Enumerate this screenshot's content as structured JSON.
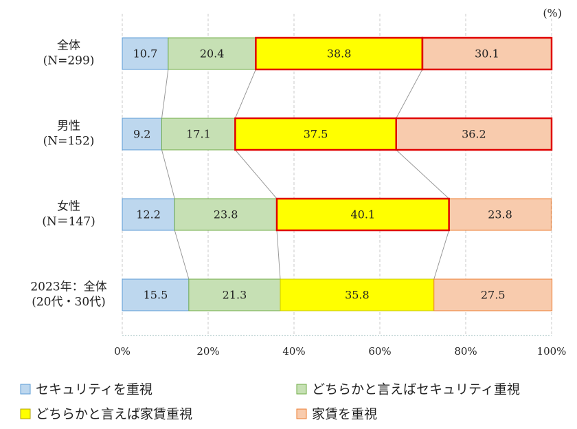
{
  "chart_data": {
    "type": "stacked-bar-horizontal",
    "unit": "(%)",
    "categories": [
      [
        "全体",
        "(N=299)"
      ],
      [
        "男性",
        "(N=152)"
      ],
      [
        "女性",
        "(N＝147)"
      ],
      [
        "2023年：全体",
        "(20代・30代)"
      ]
    ],
    "series": [
      {
        "name": "セキュリティを重視",
        "color": "#bdd7ee",
        "border": "#5b9bd5",
        "values": [
          10.7,
          9.2,
          12.2,
          15.5
        ]
      },
      {
        "name": "どちらかと言えばセキュリティ重視",
        "color": "#c6e0b4",
        "border": "#70ad47",
        "values": [
          20.4,
          17.1,
          23.8,
          21.3
        ]
      },
      {
        "name": "どちらかと言えば家賃重視",
        "color": "#ffff00",
        "border": "#c9c900",
        "values": [
          38.8,
          37.5,
          40.1,
          35.8
        ]
      },
      {
        "name": "家賃を重視",
        "color": "#f8cbad",
        "border": "#ed7d31",
        "values": [
          30.1,
          36.2,
          23.8,
          27.5
        ]
      }
    ],
    "highlight_color": "#e00000",
    "highlighted": [
      [
        0,
        2
      ],
      [
        0,
        3
      ],
      [
        1,
        2
      ],
      [
        1,
        3
      ],
      [
        2,
        2
      ]
    ],
    "xlim": [
      0,
      100
    ],
    "xticks": [
      {
        "value": 0,
        "label": "0%"
      },
      {
        "value": 20,
        "label": "20%"
      },
      {
        "value": 40,
        "label": "40%"
      },
      {
        "value": 60,
        "label": "60%"
      },
      {
        "value": 80,
        "label": "80%"
      },
      {
        "value": 100,
        "label": "100%"
      }
    ],
    "grid": true
  }
}
